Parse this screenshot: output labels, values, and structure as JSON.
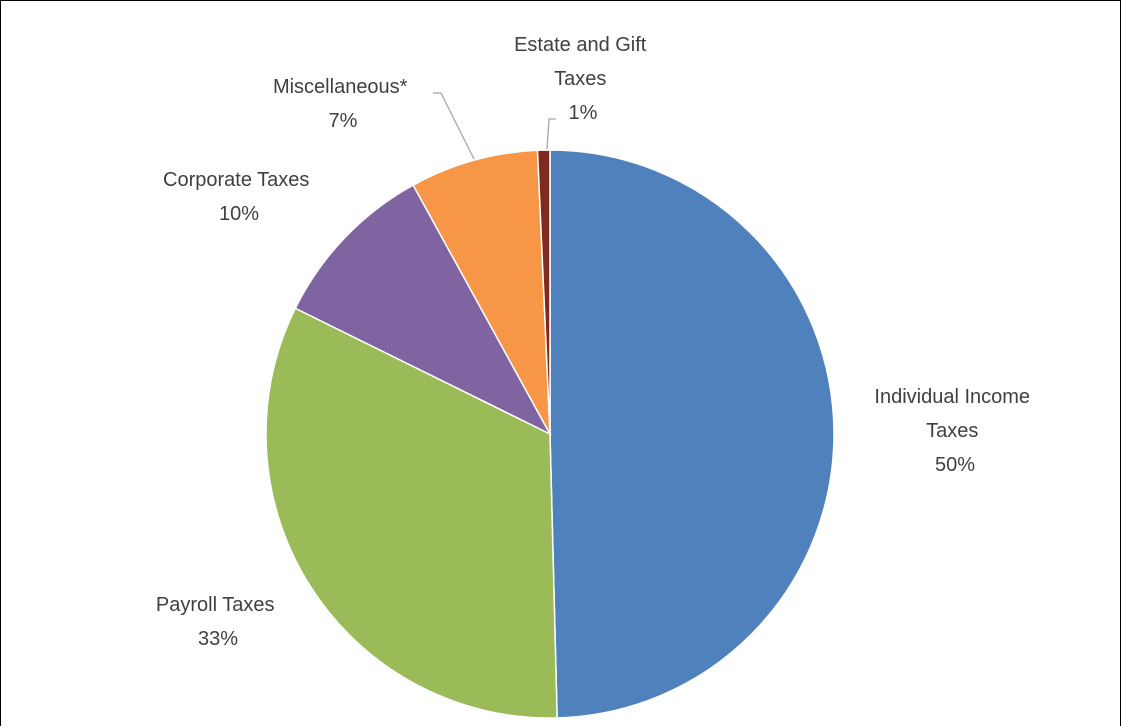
{
  "chart_data": {
    "type": "pie",
    "title": "",
    "start_angle_deg": 0,
    "direction": "clockwise",
    "slices": [
      {
        "name": "Individual Income Taxes",
        "label_lines": [
          "Individual Income",
          "Taxes"
        ],
        "percent_label": "50%",
        "value": 49.6,
        "color": "#4f81bd"
      },
      {
        "name": "Payroll Taxes",
        "label_lines": [
          "Payroll Taxes"
        ],
        "percent_label": "33%",
        "value": 32.7,
        "color": "#9bbb59"
      },
      {
        "name": "Corporate Taxes",
        "label_lines": [
          "Corporate Taxes"
        ],
        "percent_label": "10%",
        "value": 9.7,
        "color": "#8064a2"
      },
      {
        "name": "Miscellaneous*",
        "label_lines": [
          "Miscellaneous*"
        ],
        "percent_label": "7%",
        "value": 7.3,
        "color": "#f79646"
      },
      {
        "name": "Estate and Gift Taxes",
        "label_lines": [
          "Estate and Gift",
          "Taxes"
        ],
        "percent_label": "1%",
        "value": 0.7,
        "color": "#7f2a1e"
      }
    ]
  }
}
